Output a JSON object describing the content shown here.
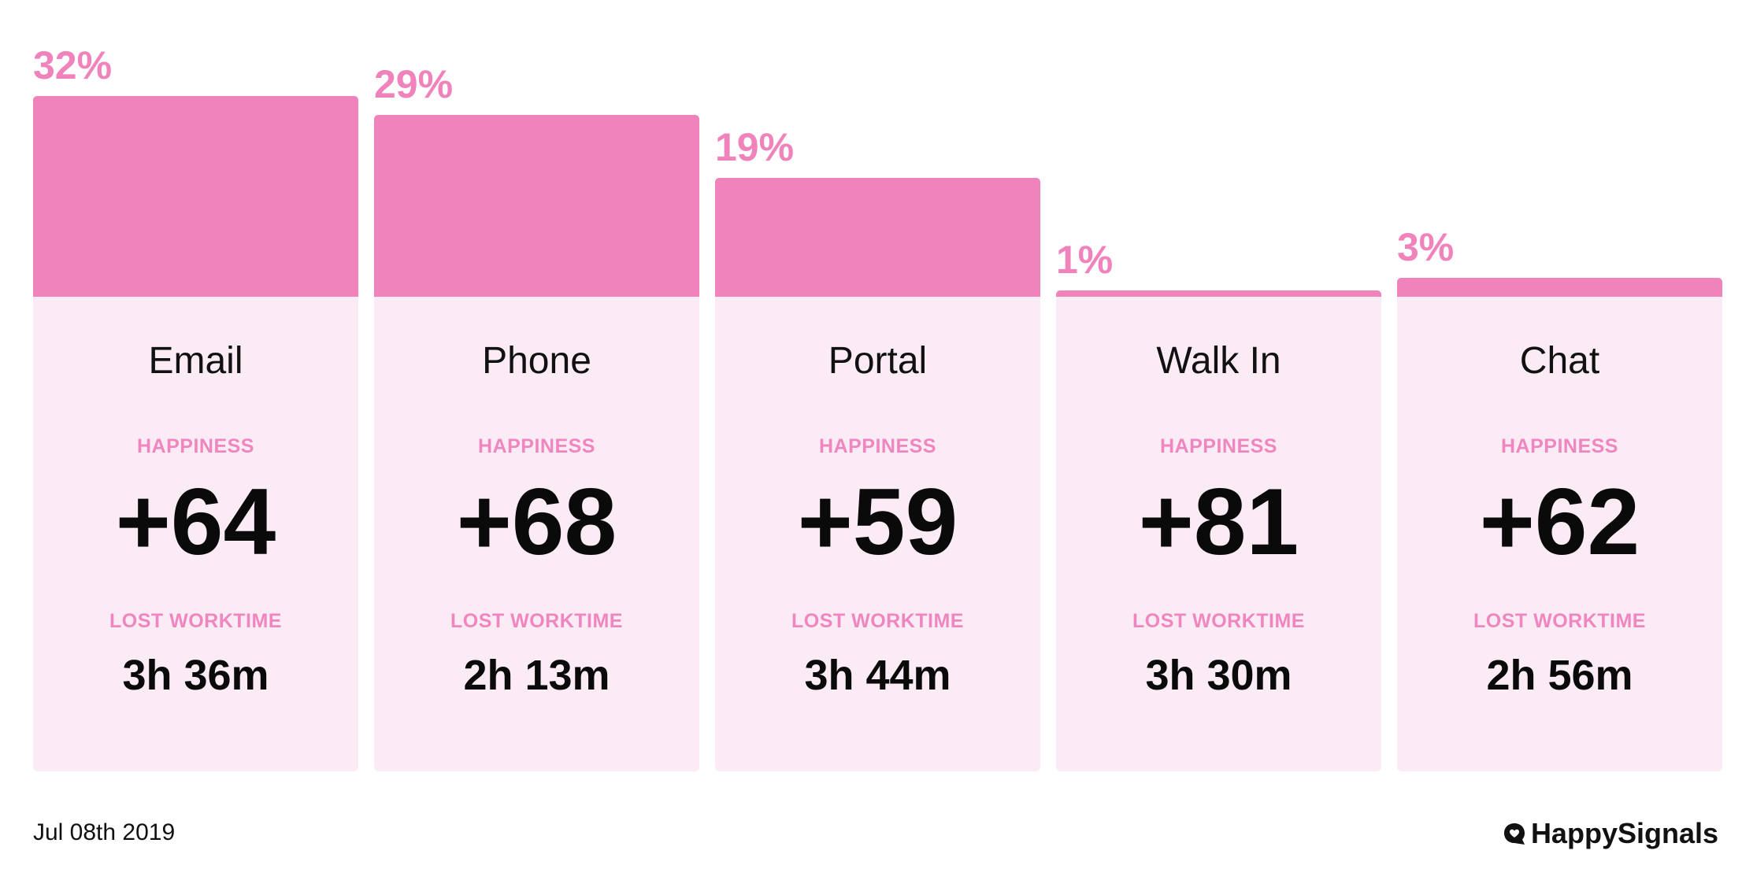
{
  "chart_data": {
    "type": "bar",
    "categories": [
      "Email",
      "Phone",
      "Portal",
      "Walk In",
      "Chat"
    ],
    "values": [
      32,
      29,
      19,
      1,
      3
    ],
    "value_labels": [
      "32%",
      "29%",
      "19%",
      "1%",
      "3%"
    ],
    "ylim": [
      0,
      32
    ],
    "grid": false,
    "bar_color": "#f083bc",
    "card_color": "#fbebf5",
    "happiness_label": "HAPPINESS",
    "lost_worktime_label": "LOST WORKTIME",
    "happiness": [
      "+64",
      "+68",
      "+59",
      "+81",
      "+62"
    ],
    "lost_worktime": [
      "3h 36m",
      "2h 13m",
      "3h 44m",
      "3h 30m",
      "2h 56m"
    ]
  },
  "footer": {
    "date": "Jul 08th 2019",
    "logo_text": "HappySignals",
    "logo_icon": "heart-speech-bubble-icon"
  }
}
